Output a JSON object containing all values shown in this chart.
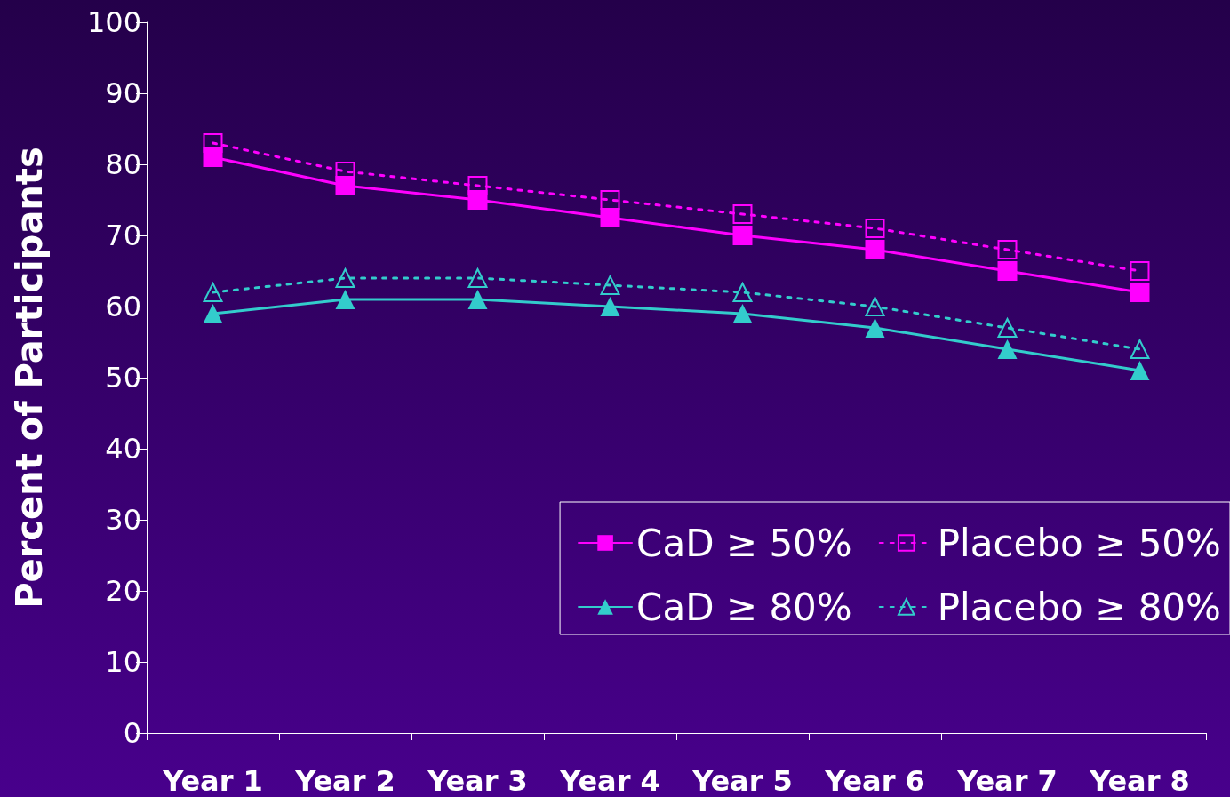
{
  "chart_data": {
    "type": "line",
    "categories": [
      "Year 1",
      "Year 2",
      "Year 3",
      "Year 4",
      "Year 5",
      "Year 6",
      "Year 7",
      "Year 8"
    ],
    "ylabel": "Percent of Participants",
    "ylim": [
      0,
      100
    ],
    "yticks": [
      0,
      10,
      20,
      30,
      40,
      50,
      60,
      70,
      80,
      90,
      100
    ],
    "grid": false,
    "legend": "bottom right",
    "series": [
      {
        "name": "CaD ≥ 50%",
        "color": "#ff00ff",
        "marker": "square",
        "line_style": "solid",
        "values": [
          81,
          77,
          75,
          72.5,
          70,
          68,
          65,
          62
        ]
      },
      {
        "name": "Placebo ≥ 50%",
        "color": "#ff00ff",
        "marker": "square",
        "line_style": "dotted",
        "values": [
          83,
          79,
          77,
          75,
          73,
          71,
          68,
          65
        ]
      },
      {
        "name": "CaD ≥ 80%",
        "color": "#33cccc",
        "marker": "triangle",
        "line_style": "solid",
        "values": [
          59,
          61,
          61,
          60,
          59,
          57,
          54,
          51
        ]
      },
      {
        "name": "Placebo ≥ 80%",
        "color": "#33cccc",
        "marker": "triangle",
        "line_style": "dotted",
        "values": [
          62,
          64,
          64,
          63,
          62,
          60,
          57,
          54
        ]
      }
    ]
  }
}
